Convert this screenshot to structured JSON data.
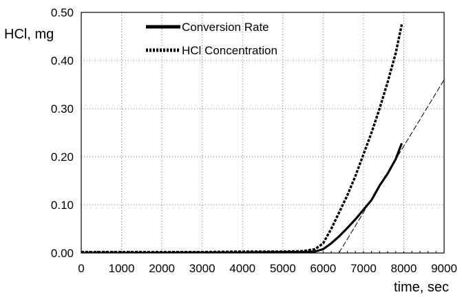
{
  "chart_data": {
    "type": "line",
    "title": "",
    "xlabel": "time, sec",
    "ylabel": "HCl, mg",
    "xlim": [
      0,
      9000
    ],
    "ylim": [
      0,
      0.5
    ],
    "x_ticks": [
      0,
      1000,
      2000,
      3000,
      4000,
      5000,
      6000,
      7000,
      8000,
      9000
    ],
    "y_ticks": [
      0.0,
      0.1,
      0.2,
      0.3,
      0.4,
      0.5
    ],
    "x_tick_labels": [
      "0",
      "1000",
      "2000",
      "3000",
      "4000",
      "5000",
      "6000",
      "7000",
      "8000",
      "9000"
    ],
    "y_tick_labels": [
      "0.00",
      "0.10",
      "0.20",
      "0.30",
      "0.40",
      "0.50"
    ],
    "grid": true,
    "legend_position": "top-center",
    "series": [
      {
        "name": "Conversion Rate",
        "style": "solid",
        "color": "#000000",
        "x": [
          0,
          1000,
          2000,
          3000,
          4000,
          5000,
          5500,
          5800,
          6000,
          6200,
          6400,
          6600,
          6800,
          7000,
          7200,
          7400,
          7600,
          7800,
          7950
        ],
        "y": [
          0.0,
          0.0,
          0.0005,
          0.001,
          0.001,
          0.002,
          0.002,
          0.003,
          0.008,
          0.02,
          0.035,
          0.052,
          0.07,
          0.09,
          0.11,
          0.14,
          0.165,
          0.195,
          0.228
        ]
      },
      {
        "name": "HCl Concentration",
        "style": "dashed",
        "color": "#000000",
        "x": [
          0,
          1000,
          2000,
          3000,
          4000,
          5000,
          5500,
          5800,
          6000,
          6200,
          6400,
          6600,
          6800,
          7000,
          7200,
          7400,
          7600,
          7800,
          7950
        ],
        "y": [
          0.002,
          0.002,
          0.002,
          0.002,
          0.003,
          0.003,
          0.004,
          0.008,
          0.02,
          0.05,
          0.085,
          0.12,
          0.16,
          0.205,
          0.25,
          0.3,
          0.355,
          0.415,
          0.475
        ]
      },
      {
        "name": "",
        "style": "thin-dashed",
        "color": "#000000",
        "x": [
          6390,
          9000
        ],
        "y": [
          0.0,
          0.36
        ]
      }
    ],
    "legend": [
      {
        "label": "Conversion Rate",
        "style": "solid"
      },
      {
        "label": "HCl Concentration",
        "style": "dashed"
      }
    ]
  }
}
